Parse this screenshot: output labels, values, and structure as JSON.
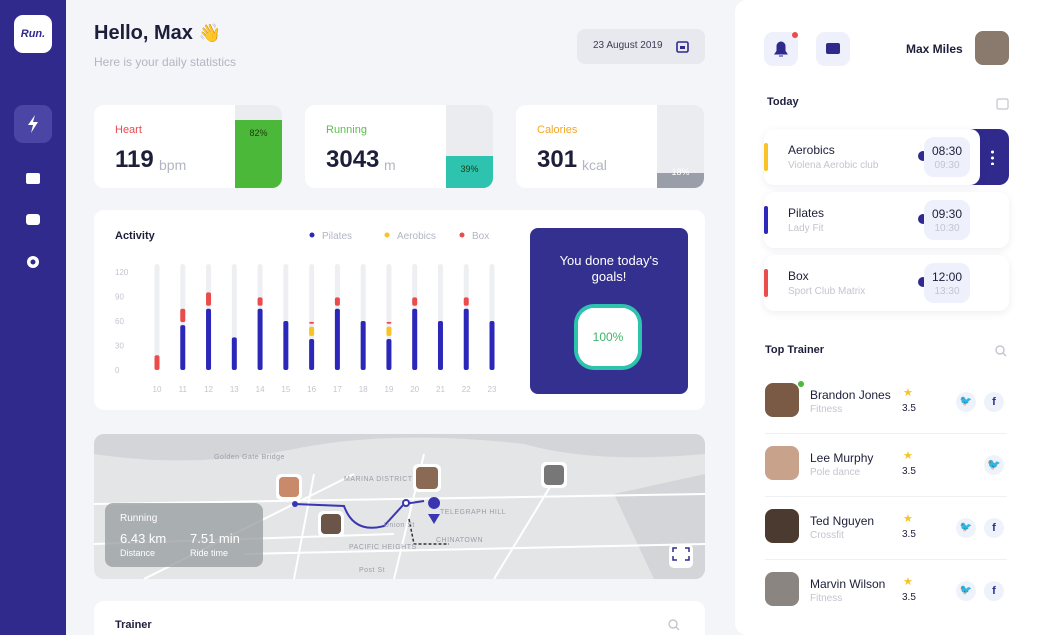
{
  "sidebar": {
    "logo": "Run."
  },
  "header": {
    "greeting": "Hello, Max",
    "subtitle": "Here is your daily statistics",
    "date": "23 August 2019"
  },
  "stats": [
    {
      "label": "Heart",
      "value": "119",
      "unit": "bpm",
      "percent": 82,
      "percent_label": "82%",
      "color": "#e9494f",
      "fill": "#4cb83a"
    },
    {
      "label": "Running",
      "value": "3043",
      "unit": "m",
      "percent": 39,
      "percent_label": "39%",
      "color": "#5cbf4a",
      "fill": "#2ec3ae"
    },
    {
      "label": "Calories",
      "value": "301",
      "unit": "kcal",
      "percent": 18,
      "percent_label": "18%",
      "color": "#f5a623",
      "fill": "#9a9ea8"
    }
  ],
  "activity": {
    "type": "bar",
    "stacked": true,
    "title": "Activity",
    "categories": [
      "10",
      "11",
      "12",
      "13",
      "14",
      "15",
      "16",
      "17",
      "18",
      "19",
      "20",
      "21",
      "22",
      "23"
    ],
    "series": [
      {
        "name": "Pilates",
        "color": "#2b27b8",
        "values": [
          0,
          55,
          75,
          40,
          75,
          60,
          38,
          75,
          60,
          38,
          75,
          60,
          75,
          60
        ]
      },
      {
        "name": "Aerobics",
        "color": "#f7c325",
        "values": [
          0,
          0,
          0,
          0,
          0,
          0,
          15,
          0,
          0,
          15,
          0,
          0,
          0,
          0
        ]
      },
      {
        "name": "Box",
        "color": "#ea4b4b",
        "values": [
          18,
          20,
          20,
          0,
          14,
          0,
          6,
          14,
          0,
          6,
          14,
          0,
          14,
          0
        ]
      }
    ],
    "ylim": [
      0,
      120
    ],
    "yticks": [
      0,
      30,
      60,
      90,
      120
    ]
  },
  "goals": {
    "text": "You done today's goals!",
    "percent": 100,
    "percent_label": "100%"
  },
  "map": {
    "labels": [
      "Golden Gate Bridge",
      "MARINA DISTRICT",
      "PACIFIC HEIGHTS",
      "Union St",
      "TELEGRAPH HILL",
      "CHINATOWN",
      "Post St"
    ],
    "panel": {
      "title": "Running",
      "distance": "6.43 km",
      "distance_label": "Distance",
      "time": "7.51 min",
      "time_label": "Ride time"
    }
  },
  "trainer": {
    "title": "Trainer"
  },
  "user": {
    "name": "Max Miles"
  },
  "today": {
    "title": "Today",
    "items": [
      {
        "name": "Aerobics",
        "place": "Violena Aerobic club",
        "start": "08:30",
        "end": "09:30",
        "color": "#f7c325"
      },
      {
        "name": "Pilates",
        "place": "Lady Fit",
        "start": "09:30",
        "end": "10:30",
        "color": "#2b27b8"
      },
      {
        "name": "Box",
        "place": "Sport Club Matrix",
        "start": "12:00",
        "end": "13:30",
        "color": "#ea4b4b"
      }
    ]
  },
  "top_trainer": {
    "title": "Top Trainer",
    "items": [
      {
        "name": "Brandon Jones",
        "specialty": "Fitness",
        "rating": 3.5
      },
      {
        "name": "Lee Murphy",
        "specialty": "Pole dance",
        "rating": 3.5
      },
      {
        "name": "Ted Nguyen",
        "specialty": "Crossfit",
        "rating": 3.5
      },
      {
        "name": "Marvin Wilson",
        "specialty": "Fitness",
        "rating": 3.5
      }
    ]
  }
}
